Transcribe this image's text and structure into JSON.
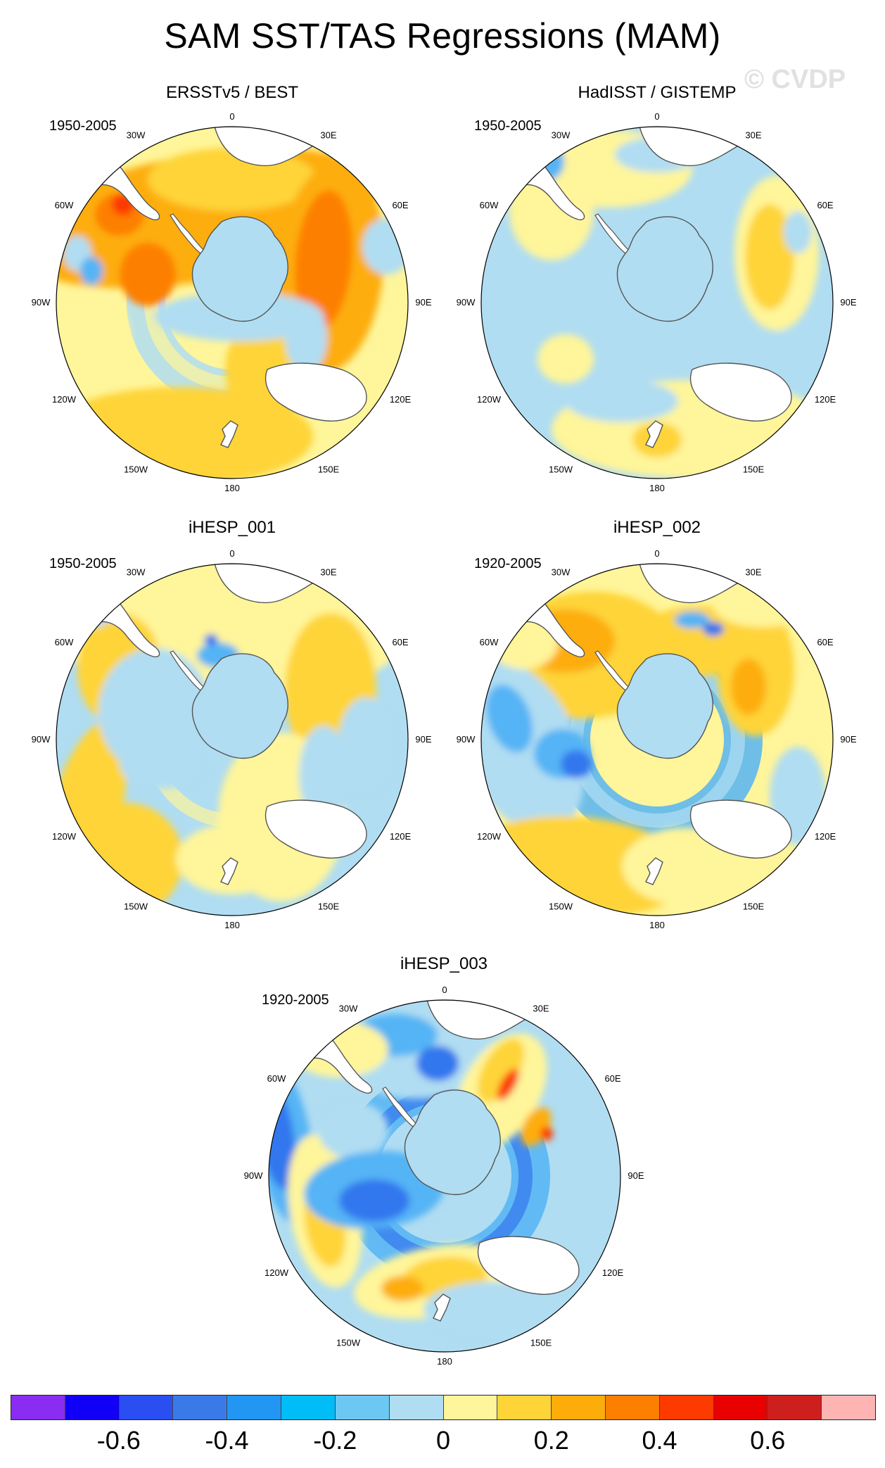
{
  "title": "SAM SST/TAS Regressions (MAM)",
  "watermark": "© CVDP",
  "palette": {
    "b3": "#3377ee",
    "b2": "#55b4f5",
    "b1": "#b0ddf2",
    "y0": "#fff59a",
    "y1": "#fed438",
    "y2": "#fdad0a",
    "y3": "#fd7f00",
    "r1": "#fd3a00",
    "land": "#ffffff",
    "coast": "#555555"
  },
  "lon_labels": {
    "n": "0",
    "e30": "30E",
    "e60": "60E",
    "e90": "90E",
    "e120": "120E",
    "e150": "150E",
    "s": "180",
    "w150": "150W",
    "w120": "120W",
    "w90": "90W",
    "w60": "60W",
    "w30": "30W"
  },
  "panels": [
    {
      "id": "p1",
      "title": "ERSSTv5 / BEST",
      "period": "1950-2005"
    },
    {
      "id": "p2",
      "title": "HadISST / GISTEMP",
      "period": "1950-2005"
    },
    {
      "id": "p3",
      "title": "iHESP_001",
      "period": "1950-2005"
    },
    {
      "id": "p4",
      "title": "iHESP_002",
      "period": "1920-2005"
    },
    {
      "id": "p5",
      "title": "iHESP_003",
      "period": "1920-2005"
    }
  ],
  "colorbar": {
    "colors": [
      "#8a2cf2",
      "#1100f8",
      "#2a4ef2",
      "#3a7ae8",
      "#2196f3",
      "#00bdf8",
      "#6cc8f2",
      "#b0ddf2",
      "#fff59a",
      "#fed438",
      "#fdad0a",
      "#fd7f00",
      "#fd3a00",
      "#e90000",
      "#ce1f1f",
      "#ffb4b4"
    ],
    "labels": [
      "-0.6",
      "-0.4",
      "-0.2",
      "0",
      "0.2",
      "0.4",
      "0.6"
    ],
    "label_values": [
      -0.6,
      -0.4,
      -0.2,
      0,
      0.2,
      0.4,
      0.6
    ],
    "min": -0.8,
    "max": 0.8
  }
}
